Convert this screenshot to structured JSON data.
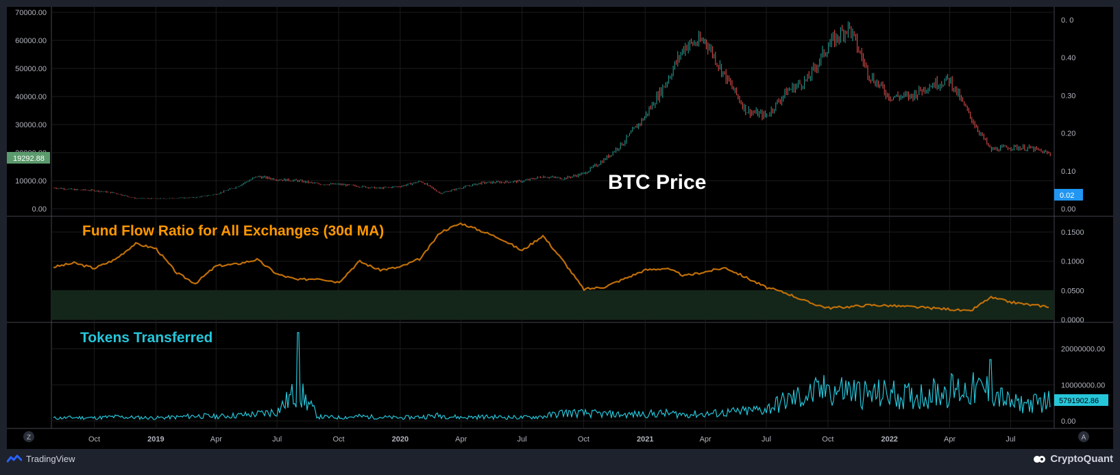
{
  "brand": {
    "left": "TradingView",
    "right": "CryptoQuant"
  },
  "corner_buttons": {
    "left": "Z",
    "right": "A"
  },
  "colors": {
    "background": "#000000",
    "frame": "#1e222d",
    "grid": "#1c1c1c",
    "up_candle": "#26a69a",
    "down_candle": "#ef5350",
    "fund_flow_line": "#c06f08",
    "fund_flow_title": "#ff9800",
    "fund_flow_band": "#14261a",
    "tokens_line": "#26c6da",
    "price_badge": "#5b9a6c",
    "ratio_badge": "#2196f3",
    "tokens_badge": "#26c6da",
    "axis_text": "#b2b5be"
  },
  "chart_data": [
    {
      "type": "line",
      "title": "BTC Price",
      "left_axis_ticks": [
        "70000.00",
        "60000.00",
        "50000.00",
        "40000.00",
        "30000.00",
        "20000.00",
        "10000.00",
        "0.00"
      ],
      "left_axis_range": [
        0,
        70000
      ],
      "right_axis_ticks": [
        "0. 0",
        "0.40",
        "0.30",
        "0.20",
        "0.10",
        "0.00"
      ],
      "last_value_label": "19292.88",
      "right_badge_label": "0.02",
      "x": [
        "2018-08",
        "2018-09",
        "2018-10",
        "2018-11",
        "2018-12",
        "2019-01",
        "2019-02",
        "2019-03",
        "2019-04",
        "2019-05",
        "2019-06",
        "2019-07",
        "2019-08",
        "2019-09",
        "2019-10",
        "2019-11",
        "2019-12",
        "2020-01",
        "2020-02",
        "2020-03",
        "2020-04",
        "2020-05",
        "2020-06",
        "2020-07",
        "2020-08",
        "2020-09",
        "2020-10",
        "2020-11",
        "2020-12",
        "2021-01",
        "2021-02",
        "2021-03",
        "2021-04",
        "2021-05",
        "2021-06",
        "2021-07",
        "2021-08",
        "2021-09",
        "2021-10",
        "2021-11",
        "2021-12",
        "2022-01",
        "2022-02",
        "2022-03",
        "2022-04",
        "2022-05",
        "2022-06",
        "2022-07",
        "2022-08",
        "2022-09"
      ],
      "values": [
        7500,
        6800,
        6500,
        5600,
        3700,
        3600,
        3800,
        4000,
        5200,
        7800,
        11500,
        10500,
        10000,
        8800,
        8700,
        8000,
        7300,
        8000,
        9800,
        5500,
        7500,
        9200,
        9500,
        9800,
        11500,
        10800,
        12500,
        17500,
        24000,
        33000,
        45000,
        58000,
        60000,
        47000,
        35000,
        33000,
        42000,
        46000,
        58000,
        65000,
        48000,
        40000,
        40000,
        44000,
        46000,
        33000,
        21000,
        22000,
        21500,
        19300
      ]
    },
    {
      "type": "area",
      "title": "Fund Flow Ratio for All Exchanges (30d MA)",
      "axis_ticks": [
        "0.1500",
        "0.1000",
        "0.0500",
        "0.0000"
      ],
      "axis_range": [
        0,
        0.17
      ],
      "band": [
        0,
        0.05
      ],
      "x": [
        "2018-08",
        "2018-09",
        "2018-10",
        "2018-11",
        "2018-12",
        "2019-01",
        "2019-02",
        "2019-03",
        "2019-04",
        "2019-05",
        "2019-06",
        "2019-07",
        "2019-08",
        "2019-09",
        "2019-10",
        "2019-11",
        "2019-12",
        "2020-01",
        "2020-02",
        "2020-03",
        "2020-04",
        "2020-05",
        "2020-06",
        "2020-07",
        "2020-08",
        "2020-09",
        "2020-10",
        "2020-11",
        "2020-12",
        "2021-01",
        "2021-02",
        "2021-03",
        "2021-04",
        "2021-05",
        "2021-06",
        "2021-07",
        "2021-08",
        "2021-09",
        "2021-10",
        "2021-11",
        "2021-12",
        "2022-01",
        "2022-02",
        "2022-03",
        "2022-04",
        "2022-05",
        "2022-06",
        "2022-07",
        "2022-08",
        "2022-09"
      ],
      "values": [
        0.09,
        0.097,
        0.088,
        0.103,
        0.13,
        0.122,
        0.08,
        0.062,
        0.092,
        0.095,
        0.103,
        0.078,
        0.068,
        0.071,
        0.064,
        0.1,
        0.085,
        0.09,
        0.105,
        0.15,
        0.165,
        0.152,
        0.138,
        0.118,
        0.144,
        0.1,
        0.052,
        0.056,
        0.07,
        0.085,
        0.088,
        0.075,
        0.082,
        0.089,
        0.072,
        0.055,
        0.045,
        0.03,
        0.02,
        0.022,
        0.025,
        0.024,
        0.022,
        0.02,
        0.018,
        0.014,
        0.038,
        0.03,
        0.025,
        0.022
      ]
    },
    {
      "type": "line",
      "title": "Tokens Transferred",
      "axis_ticks": [
        "20000000.00",
        "10000000.00",
        "0.00"
      ],
      "axis_range": [
        0,
        26000000
      ],
      "last_value_label": "5791902.86",
      "x": [
        "2018-08",
        "2018-09",
        "2018-10",
        "2018-11",
        "2018-12",
        "2019-01",
        "2019-02",
        "2019-03",
        "2019-04",
        "2019-05",
        "2019-06",
        "2019-07",
        "2019-08",
        "2019-09",
        "2019-10",
        "2019-11",
        "2019-12",
        "2020-01",
        "2020-02",
        "2020-03",
        "2020-04",
        "2020-05",
        "2020-06",
        "2020-07",
        "2020-08",
        "2020-09",
        "2020-10",
        "2020-11",
        "2020-12",
        "2021-01",
        "2021-02",
        "2021-03",
        "2021-04",
        "2021-05",
        "2021-06",
        "2021-07",
        "2021-08",
        "2021-09",
        "2021-10",
        "2021-11",
        "2021-12",
        "2022-01",
        "2022-02",
        "2022-03",
        "2022-04",
        "2022-05",
        "2022-06",
        "2022-07",
        "2022-08",
        "2022-09"
      ],
      "values": [
        800000,
        1000000,
        900000,
        1200000,
        1000000,
        900000,
        1100000,
        1500000,
        1300000,
        1600000,
        2000000,
        2800000,
        24500000,
        1200000,
        1000000,
        1300000,
        1100000,
        900000,
        1200000,
        1600000,
        1000000,
        1200000,
        1100000,
        1000000,
        1300000,
        2400000,
        2200000,
        2000000,
        1800000,
        2000000,
        2200000,
        1900000,
        2000000,
        2400000,
        2800000,
        3500000,
        6000000,
        7500000,
        10000000,
        9000000,
        7500000,
        8000000,
        7000000,
        8000000,
        9000000,
        9000000,
        17000000,
        5000000,
        5000000,
        6000000
      ]
    }
  ],
  "x_axis_ticks": [
    {
      "label": "Oct",
      "bold": false,
      "date": "2018-10"
    },
    {
      "label": "2019",
      "bold": true,
      "date": "2019-01"
    },
    {
      "label": "Apr",
      "bold": false,
      "date": "2019-04"
    },
    {
      "label": "Jul",
      "bold": false,
      "date": "2019-07"
    },
    {
      "label": "Oct",
      "bold": false,
      "date": "2019-10"
    },
    {
      "label": "2020",
      "bold": true,
      "date": "2020-01"
    },
    {
      "label": "Apr",
      "bold": false,
      "date": "2020-04"
    },
    {
      "label": "Jul",
      "bold": false,
      "date": "2020-07"
    },
    {
      "label": "Oct",
      "bold": false,
      "date": "2020-10"
    },
    {
      "label": "2021",
      "bold": true,
      "date": "2021-01"
    },
    {
      "label": "Apr",
      "bold": false,
      "date": "2021-04"
    },
    {
      "label": "Jul",
      "bold": false,
      "date": "2021-07"
    },
    {
      "label": "Oct",
      "bold": false,
      "date": "2021-10"
    },
    {
      "label": "2022",
      "bold": true,
      "date": "2022-01"
    },
    {
      "label": "Apr",
      "bold": false,
      "date": "2022-04"
    },
    {
      "label": "Jul",
      "bold": false,
      "date": "2022-07"
    }
  ]
}
